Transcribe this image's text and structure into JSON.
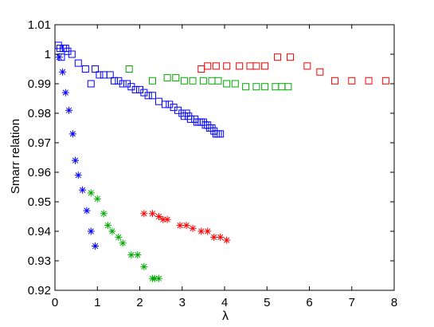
{
  "chart_data": {
    "type": "scatter",
    "title": "",
    "xlabel": "λ",
    "ylabel": "Smarr relation",
    "xlim": [
      0,
      8
    ],
    "ylim": [
      0.92,
      1.01
    ],
    "xticks": [
      "0",
      "1",
      "2",
      "3",
      "4",
      "5",
      "6",
      "7",
      "8"
    ],
    "xtick_values": [
      0,
      1,
      2,
      3,
      4,
      5,
      6,
      7,
      8
    ],
    "yticks": [
      "0.92",
      "0.93",
      "0.94",
      "0.95",
      "0.96",
      "0.97",
      "0.98",
      "0.99",
      "1",
      "1.01"
    ],
    "ytick_values": [
      0.92,
      0.93,
      0.94,
      0.95,
      0.96,
      0.97,
      0.98,
      0.99,
      1.0,
      1.01
    ],
    "grid": false,
    "series": [
      {
        "color": "#0000ff",
        "marker": "square",
        "points": [
          [
            0.08,
            1.003
          ],
          [
            0.12,
            1.002
          ],
          [
            0.15,
            0.999
          ],
          [
            0.2,
            1.002
          ],
          [
            0.25,
            1.002
          ],
          [
            0.3,
            1.001
          ],
          [
            0.4,
            1.0
          ],
          [
            0.55,
            0.997
          ],
          [
            0.72,
            0.995
          ],
          [
            0.85,
            0.99
          ],
          [
            0.95,
            0.995
          ],
          [
            1.05,
            0.993
          ],
          [
            1.15,
            0.993
          ],
          [
            1.3,
            0.993
          ],
          [
            1.4,
            0.991
          ],
          [
            1.5,
            0.991
          ],
          [
            1.6,
            0.99
          ],
          [
            1.7,
            0.99
          ],
          [
            1.8,
            0.989
          ],
          [
            1.9,
            0.988
          ],
          [
            2.0,
            0.988
          ],
          [
            2.1,
            0.987
          ],
          [
            2.2,
            0.986
          ],
          [
            2.3,
            0.986
          ],
          [
            2.45,
            0.984
          ],
          [
            2.6,
            0.983
          ],
          [
            2.7,
            0.983
          ],
          [
            2.8,
            0.982
          ],
          [
            2.9,
            0.981
          ],
          [
            3.0,
            0.98
          ],
          [
            3.05,
            0.979
          ],
          [
            3.1,
            0.98
          ],
          [
            3.15,
            0.979
          ],
          [
            3.2,
            0.978
          ],
          [
            3.3,
            0.978
          ],
          [
            3.35,
            0.977
          ],
          [
            3.4,
            0.977
          ],
          [
            3.45,
            0.977
          ],
          [
            3.5,
            0.977
          ],
          [
            3.55,
            0.976
          ],
          [
            3.6,
            0.976
          ],
          [
            3.65,
            0.975
          ],
          [
            3.7,
            0.975
          ],
          [
            3.75,
            0.974
          ],
          [
            3.8,
            0.973
          ],
          [
            3.85,
            0.973
          ],
          [
            3.9,
            0.973
          ]
        ]
      },
      {
        "color": "#0000ff",
        "marker": "star",
        "points": [
          [
            0.1,
            0.999
          ],
          [
            0.18,
            0.994
          ],
          [
            0.25,
            0.987
          ],
          [
            0.33,
            0.981
          ],
          [
            0.42,
            0.973
          ],
          [
            0.48,
            0.964
          ],
          [
            0.55,
            0.959
          ],
          [
            0.65,
            0.954
          ],
          [
            0.75,
            0.947
          ],
          [
            0.85,
            0.94
          ],
          [
            0.95,
            0.935
          ]
        ]
      },
      {
        "color": "#00aa00",
        "marker": "square",
        "points": [
          [
            1.75,
            0.995
          ],
          [
            2.3,
            0.991
          ],
          [
            2.65,
            0.992
          ],
          [
            2.85,
            0.992
          ],
          [
            3.05,
            0.991
          ],
          [
            3.25,
            0.991
          ],
          [
            3.5,
            0.991
          ],
          [
            3.7,
            0.991
          ],
          [
            3.85,
            0.991
          ],
          [
            4.05,
            0.99
          ],
          [
            4.25,
            0.99
          ],
          [
            4.5,
            0.989
          ],
          [
            4.75,
            0.989
          ],
          [
            4.95,
            0.989
          ],
          [
            5.2,
            0.989
          ],
          [
            5.35,
            0.989
          ],
          [
            5.5,
            0.989
          ]
        ]
      },
      {
        "color": "#00aa00",
        "marker": "star",
        "points": [
          [
            0.85,
            0.953
          ],
          [
            1.0,
            0.951
          ],
          [
            1.15,
            0.946
          ],
          [
            1.25,
            0.942
          ],
          [
            1.35,
            0.94
          ],
          [
            1.5,
            0.938
          ],
          [
            1.6,
            0.936
          ],
          [
            1.8,
            0.932
          ],
          [
            1.95,
            0.932
          ],
          [
            2.1,
            0.928
          ],
          [
            2.3,
            0.924
          ],
          [
            2.35,
            0.924
          ],
          [
            2.45,
            0.924
          ]
        ]
      },
      {
        "color": "#ff0000",
        "marker": "square",
        "points": [
          [
            3.45,
            0.995
          ],
          [
            3.6,
            0.996
          ],
          [
            3.8,
            0.996
          ],
          [
            4.05,
            0.996
          ],
          [
            4.35,
            0.996
          ],
          [
            4.6,
            0.996
          ],
          [
            4.75,
            0.996
          ],
          [
            4.95,
            0.996
          ],
          [
            5.25,
            0.999
          ],
          [
            5.55,
            0.999
          ],
          [
            5.95,
            0.996
          ],
          [
            6.25,
            0.994
          ],
          [
            6.6,
            0.991
          ],
          [
            7.0,
            0.991
          ],
          [
            7.4,
            0.991
          ],
          [
            7.8,
            0.991
          ]
        ]
      },
      {
        "color": "#ff0000",
        "marker": "star",
        "points": [
          [
            2.1,
            0.946
          ],
          [
            2.3,
            0.946
          ],
          [
            2.45,
            0.945
          ],
          [
            2.55,
            0.944
          ],
          [
            2.65,
            0.944
          ],
          [
            2.95,
            0.942
          ],
          [
            3.1,
            0.942
          ],
          [
            3.25,
            0.941
          ],
          [
            3.45,
            0.94
          ],
          [
            3.6,
            0.94
          ],
          [
            3.75,
            0.938
          ],
          [
            3.9,
            0.938
          ],
          [
            4.05,
            0.937
          ]
        ]
      }
    ]
  }
}
